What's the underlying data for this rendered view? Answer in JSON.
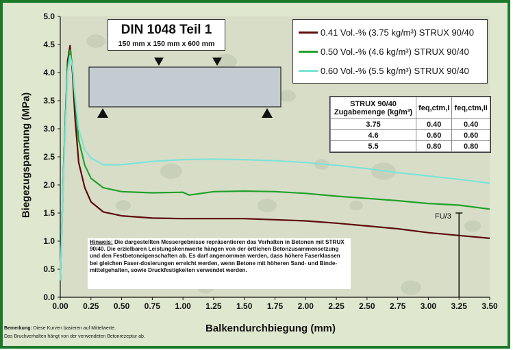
{
  "chart_data": {
    "type": "line",
    "xlabel": "Balkendurchbiegung (mm)",
    "ylabel": "Biegezugspannung (MPa)",
    "xlim": [
      0,
      3.5
    ],
    "ylim": [
      0,
      5.0
    ],
    "xticks": [
      "0.00",
      "0.25",
      "0.50",
      "0.75",
      "1.00",
      "1.25",
      "1.50",
      "1.75",
      "2.00",
      "2.25",
      "2.50",
      "2.75",
      "3.00",
      "3.25",
      "3.50"
    ],
    "yticks": [
      "0.0",
      "0.5",
      "1.0",
      "1.5",
      "2.0",
      "2.5",
      "3.0",
      "3.5",
      "4.0",
      "4.5",
      "5.0"
    ],
    "grid": false,
    "legend_position": "top-right",
    "series": [
      {
        "name": "0.41 Vol.-% (3.75 kg/m³) STRUX 90/40",
        "color": "#5c0a0a",
        "x": [
          0.0,
          0.03,
          0.06,
          0.08,
          0.1,
          0.12,
          0.15,
          0.2,
          0.25,
          0.35,
          0.5,
          0.75,
          1.0,
          1.25,
          1.5,
          1.75,
          2.0,
          2.25,
          2.5,
          2.75,
          3.0,
          3.25,
          3.5
        ],
        "y": [
          0.3,
          2.5,
          4.2,
          4.48,
          4.0,
          3.2,
          2.4,
          1.95,
          1.7,
          1.52,
          1.45,
          1.41,
          1.4,
          1.4,
          1.4,
          1.38,
          1.36,
          1.32,
          1.27,
          1.22,
          1.15,
          1.1,
          1.05
        ]
      },
      {
        "name": "0.50 Vol.-% (4.6 kg/m³) STRUX 90/40",
        "color": "#1fa12a",
        "x": [
          0.0,
          0.03,
          0.06,
          0.08,
          0.1,
          0.12,
          0.15,
          0.2,
          0.25,
          0.35,
          0.5,
          0.75,
          1.0,
          1.05,
          1.25,
          1.5,
          1.75,
          2.0,
          2.25,
          2.5,
          2.75,
          3.0,
          3.25,
          3.5
        ],
        "y": [
          0.3,
          2.5,
          4.1,
          4.4,
          4.1,
          3.5,
          2.8,
          2.35,
          2.12,
          1.95,
          1.88,
          1.86,
          1.87,
          1.82,
          1.88,
          1.89,
          1.88,
          1.85,
          1.8,
          1.76,
          1.72,
          1.67,
          1.64,
          1.57
        ]
      },
      {
        "name": "0.60 Vol.-% (5.5 kg/m³) STRUX 90/40",
        "color": "#7de3d8",
        "x": [
          0.0,
          0.03,
          0.06,
          0.08,
          0.1,
          0.12,
          0.15,
          0.2,
          0.25,
          0.35,
          0.5,
          0.75,
          1.0,
          1.25,
          1.5,
          1.75,
          2.0,
          2.25,
          2.5,
          2.75,
          3.0,
          3.25,
          3.5
        ],
        "y": [
          0.3,
          2.4,
          4.0,
          4.3,
          4.1,
          3.6,
          3.0,
          2.62,
          2.48,
          2.36,
          2.36,
          2.42,
          2.45,
          2.46,
          2.45,
          2.43,
          2.4,
          2.35,
          2.29,
          2.22,
          2.16,
          2.1,
          2.03
        ]
      }
    ]
  },
  "din_box": {
    "title": "DIN 1048 Teil 1",
    "subtitle": "150 mm x 150 mm x 600 mm"
  },
  "table": {
    "header": [
      "STRUX 90/40 Zugabemenge (kg/m³)",
      "feq,ctm,I",
      "feq,ctm,II"
    ],
    "rows": [
      [
        "3.75",
        "0.40",
        "0.40"
      ],
      [
        "4.6",
        "0.60",
        "0.60"
      ],
      [
        "5.5",
        "0.80",
        "0.80"
      ]
    ]
  },
  "note": {
    "heading": "Hinweis:",
    "text": "Die dargestellten Messergebnisse repräsentieren das Verhalten in Betonen mit STRUX 90/40. Die erzielbaren Leistungskennwerte hängen von der örtlichen Betonzusammensetzung und den Festbetoneigenschaften ab. Es darf angenommen werden, dass höhere Faserklassen bei gleichen Faser-dosierungen erreicht werden, wenn Betone mit höheren Sand- und Binde-mittelgehalten, sowie Druckfestigkeiten verwendet werden."
  },
  "annotation": {
    "fu_label": "FU/3",
    "fu_x": 3.25,
    "fu_y": 1.5
  },
  "footnotes": {
    "line1_bold": "Bemerkung:",
    "line1": "Diese Kurven basieren auf Mittelwerte.",
    "line2": "Das Bruchverhalten hängt von der verwendeten Betonrezeptur ab."
  }
}
